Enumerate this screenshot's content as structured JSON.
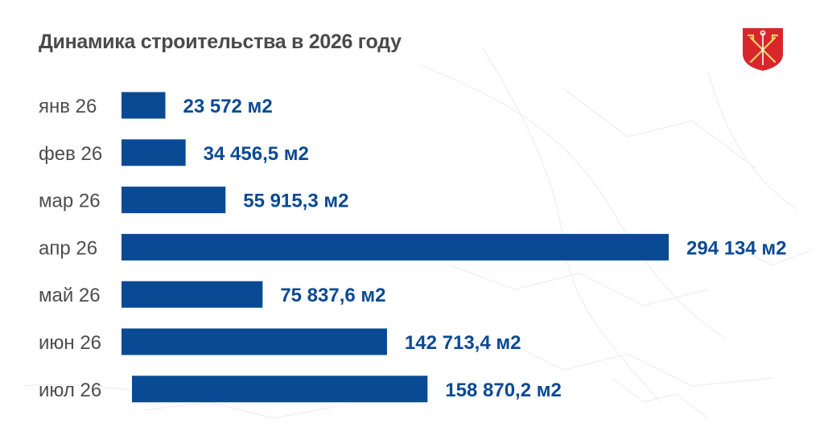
{
  "title": "Динамика строительства в 2026 году",
  "colors": {
    "bar": "#0a4a94",
    "value_text": "#0a4a94",
    "title": "#4a4a4a",
    "emblem": "#d8262b"
  },
  "emblem": "saint-petersburg-coat-of-arms",
  "chart_data": {
    "type": "bar",
    "orientation": "horizontal",
    "categories": [
      "янв 26",
      "фев 26",
      "мар 26",
      "апр 26",
      "май 26",
      "июн 26",
      "июл 26"
    ],
    "values": [
      23572,
      34456.5,
      55915.3,
      294134,
      75837.6,
      142713.4,
      158870.2
    ],
    "value_labels": [
      "23 572 м2",
      "34 456,5 м2",
      "55 915,3 м2",
      "294 134 м2",
      "75 837,6 м2",
      "142 713,4 м2",
      "158 870,2 м2"
    ],
    "title": "Динамика строительства в 2026 году",
    "xlabel": "",
    "ylabel": "",
    "grid": false
  }
}
